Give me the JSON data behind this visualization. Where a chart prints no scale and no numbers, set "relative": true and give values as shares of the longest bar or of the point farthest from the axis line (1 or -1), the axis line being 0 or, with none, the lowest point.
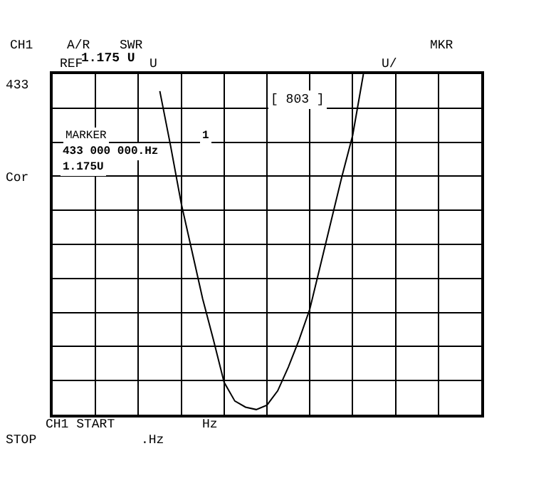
{
  "chart_data": {
    "type": "line",
    "relative": true,
    "grid": true,
    "legend": false,
    "marker": "none",
    "line_style": "solid",
    "categories": [
      null,
      null,
      null,
      null,
      null,
      null,
      null,
      null,
      null,
      null,
      null,
      null,
      null,
      null,
      null,
      null,
      null,
      null,
      null,
      null,
      null,
      null,
      null,
      null,
      null,
      null,
      null,
      null,
      null,
      null,
      null,
      null,
      null,
      null,
      null,
      null,
      null,
      null,
      null,
      null,
      null
    ],
    "series": [
      {
        "color": "#000000",
        "values": [
          null,
          null,
          null,
          null,
          null,
          null,
          null,
          null,
          null,
          null,
          0.95,
          0.79,
          0.62,
          0.48,
          0.34,
          0.22,
          0.095,
          0.04,
          0.022,
          0.015,
          0.028,
          0.07,
          0.14,
          0.22,
          0.31,
          0.44,
          0.57,
          0.7,
          0.82,
          1.0,
          null,
          null,
          null,
          null,
          null,
          null,
          null,
          null,
          null,
          null,
          null
        ]
      }
    ],
    "annotations": [
      "CH1",
      "A/R",
      "SWR",
      "MKR",
      "1.175 U",
      "REF",
      "U",
      "U/",
      "433",
      "[ 803 ]",
      "MARKER",
      "1",
      "433 000 000.Hz",
      "1.175U",
      "Cor",
      "CH1 START",
      "Hz",
      "STOP",
      ".Hz"
    ]
  }
}
